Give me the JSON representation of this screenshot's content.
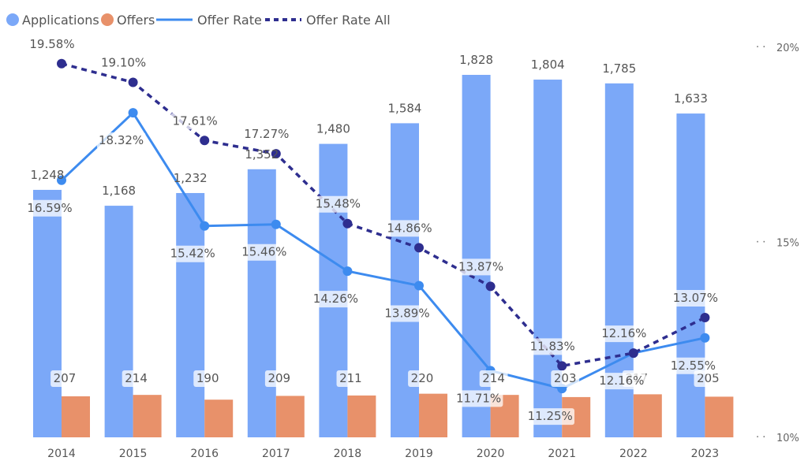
{
  "chart_data": {
    "type": "bar",
    "categories": [
      "2014",
      "2015",
      "2016",
      "2017",
      "2018",
      "2019",
      "2020",
      "2021",
      "2022",
      "2023"
    ],
    "series": [
      {
        "name": "Applications",
        "kind": "bar",
        "axis": "left",
        "color": "#7ba8f8",
        "values": [
          1248,
          1168,
          1232,
          1352,
          1480,
          1584,
          1828,
          1804,
          1785,
          1633
        ],
        "labels": [
          "1,248",
          "1,168",
          "1,232",
          "1,352",
          "1,480",
          "1,584",
          "1,828",
          "1,804",
          "1,785",
          "1,633"
        ]
      },
      {
        "name": "Offers",
        "kind": "bar",
        "axis": "left",
        "color": "#e8916a",
        "values": [
          207,
          214,
          190,
          209,
          211,
          220,
          214,
          203,
          217,
          205
        ],
        "labels": [
          "207",
          "214",
          "190",
          "209",
          "211",
          "220",
          "214",
          "203",
          "217",
          "205"
        ]
      },
      {
        "name": "Offer Rate",
        "kind": "line",
        "axis": "right",
        "color": "#3d8bef",
        "values": [
          16.59,
          18.32,
          15.42,
          15.46,
          14.26,
          13.89,
          11.71,
          11.25,
          12.16,
          12.55
        ],
        "labels": [
          "16.59%",
          "18.32%",
          "15.42%",
          "15.46%",
          "14.26%",
          "13.89%",
          "11.71%",
          "11.25%",
          "12.16%",
          "12.55%"
        ]
      },
      {
        "name": "Offer Rate All",
        "kind": "line-dashed",
        "axis": "right",
        "color": "#2e2e8f",
        "values": [
          19.58,
          19.1,
          17.61,
          17.27,
          15.48,
          14.86,
          13.87,
          11.83,
          12.16,
          13.07
        ],
        "labels": [
          "19.58%",
          "19.10%",
          "17.61%",
          "17.27%",
          "15.48%",
          "14.86%",
          "13.87%",
          "11.83%",
          "12.16%",
          "13.07%"
        ]
      }
    ],
    "y2_ticks": [
      "10%",
      "15%",
      "20%"
    ],
    "y2lim": [
      10,
      20
    ],
    "ylim": [
      0,
      1900
    ],
    "legend": "top-left",
    "grid": false
  }
}
